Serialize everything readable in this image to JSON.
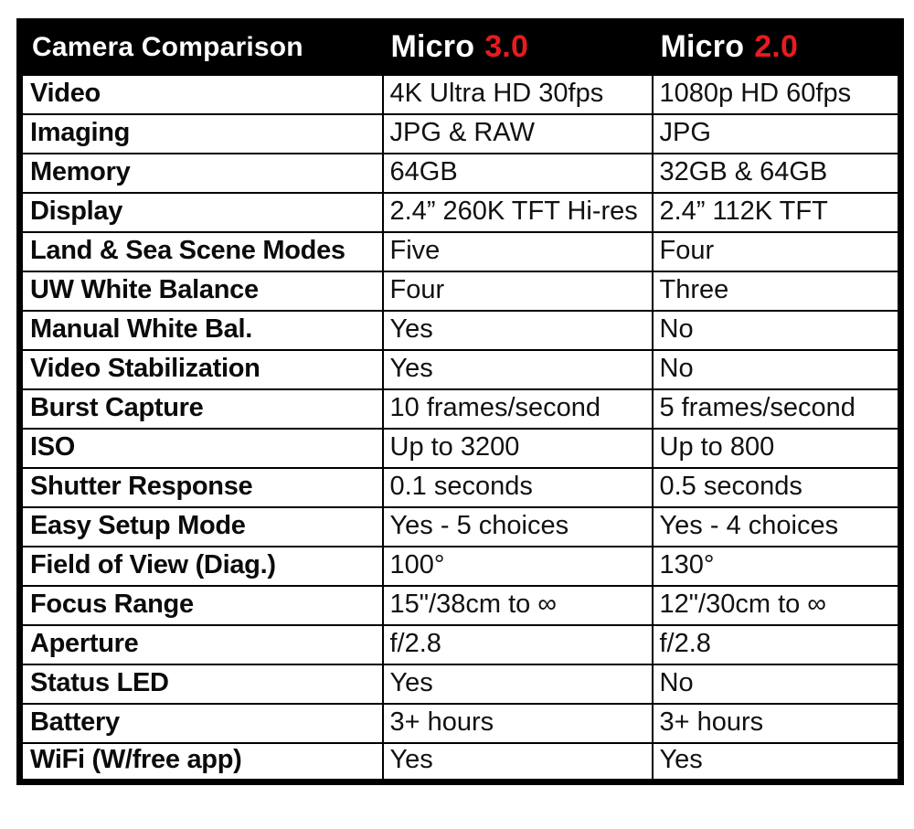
{
  "colors": {
    "accent_red": "#e81b1e",
    "header_bg": "#000000",
    "header_text": "#ffffff",
    "cell_text": "#111111"
  },
  "header": {
    "title": "Camera Comparison",
    "micro3_name": "Micro",
    "micro3_version": "3.0",
    "micro2_name": "Micro",
    "micro2_version": "2.0"
  },
  "chart_data": {
    "type": "table",
    "title": "Camera Comparison",
    "columns": [
      "Camera Comparison",
      "Micro 3.0",
      "Micro 2.0"
    ],
    "rows": [
      [
        "Video",
        "4K Ultra HD 30fps",
        "1080p HD 60fps"
      ],
      [
        "Imaging",
        "JPG & RAW",
        "JPG"
      ],
      [
        "Memory",
        "64GB",
        "32GB & 64GB"
      ],
      [
        "Display",
        "2.4” 260K TFT Hi-res",
        "2.4” 112K TFT"
      ],
      [
        "Land & Sea Scene Modes",
        "Five",
        "Four"
      ],
      [
        "UW White Balance",
        "Four",
        "Three"
      ],
      [
        "Manual White Bal.",
        "Yes",
        "No"
      ],
      [
        "Video Stabilization",
        "Yes",
        "No"
      ],
      [
        "Burst Capture",
        "10 frames/second",
        "5 frames/second"
      ],
      [
        "ISO",
        "Up to 3200",
        "Up to 800"
      ],
      [
        "Shutter Response",
        "0.1 seconds",
        "0.5 seconds"
      ],
      [
        "Easy Setup Mode",
        "Yes - 5 choices",
        "Yes - 4 choices"
      ],
      [
        "Field of View (Diag.)",
        "100°",
        "130°"
      ],
      [
        "Focus Range",
        "15\"/38cm to ∞",
        "12\"/30cm to ∞"
      ],
      [
        "Aperture",
        "f/2.8",
        "f/2.8"
      ],
      [
        "Status LED",
        "Yes",
        "No"
      ],
      [
        "Battery",
        "3+ hours",
        "3+ hours"
      ],
      [
        "WiFi (W/free app)",
        "Yes",
        "Yes"
      ]
    ]
  }
}
